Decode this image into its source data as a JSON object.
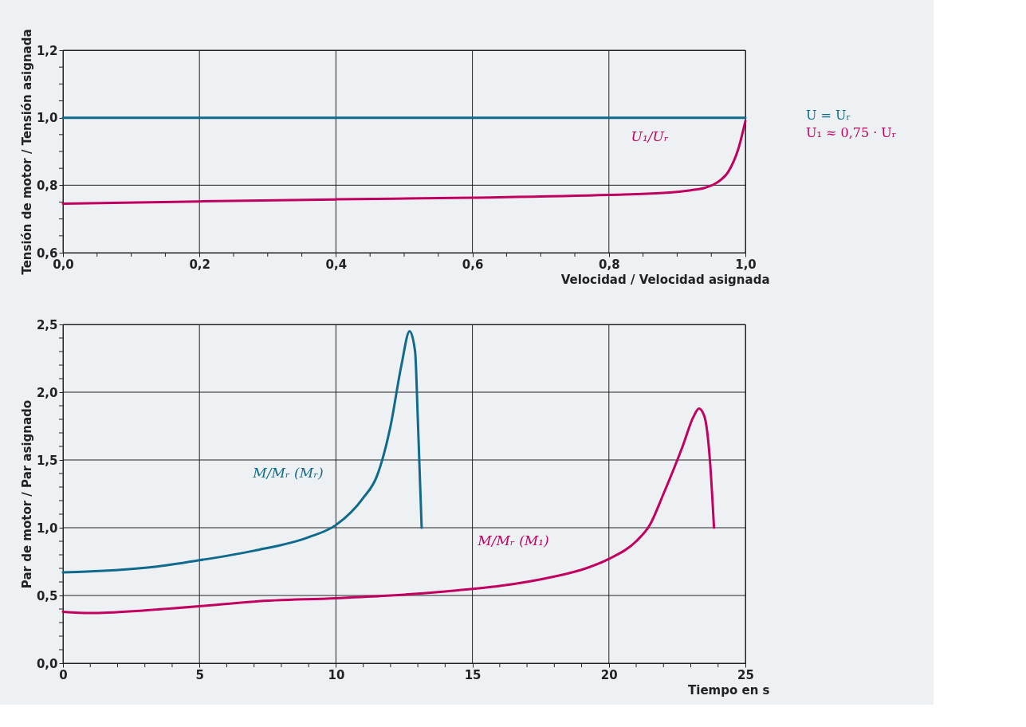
{
  "chart_data": [
    {
      "type": "line",
      "xlabel": "Velocidad / Velocidad asignada",
      "ylabel": "Tensión de motor / Tensión asignada",
      "grid": true,
      "marker": "none",
      "line_style": "solid",
      "legend": "right",
      "xlim": [
        0,
        1
      ],
      "ylim": [
        0.6,
        1.2
      ],
      "xticks": [
        {
          "value": 0,
          "label": "0,0"
        },
        {
          "value": 0.05,
          "label": null
        },
        {
          "value": 0.1,
          "label": null
        },
        {
          "value": 0.15,
          "label": null
        },
        {
          "value": 0.2,
          "label": "0,2"
        },
        {
          "value": 0.25,
          "label": null
        },
        {
          "value": 0.3,
          "label": null
        },
        {
          "value": 0.35,
          "label": null
        },
        {
          "value": 0.4,
          "label": "0,4"
        },
        {
          "value": 0.45,
          "label": null
        },
        {
          "value": 0.5,
          "label": null
        },
        {
          "value": 0.55,
          "label": null
        },
        {
          "value": 0.6,
          "label": "0,6"
        },
        {
          "value": 0.65,
          "label": null
        },
        {
          "value": 0.7,
          "label": null
        },
        {
          "value": 0.75,
          "label": null
        },
        {
          "value": 0.8,
          "label": "0,8"
        },
        {
          "value": 0.85,
          "label": null
        },
        {
          "value": 0.9,
          "label": null
        },
        {
          "value": 0.95,
          "label": null
        },
        {
          "value": 1.0,
          "label": "1,0"
        }
      ],
      "yticks": [
        {
          "value": 0.6,
          "label": "0,6"
        },
        {
          "value": 0.65,
          "label": null
        },
        {
          "value": 0.7,
          "label": null
        },
        {
          "value": 0.75,
          "label": null
        },
        {
          "value": 0.8,
          "label": "0,8"
        },
        {
          "value": 0.85,
          "label": null
        },
        {
          "value": 0.9,
          "label": null
        },
        {
          "value": 0.95,
          "label": null
        },
        {
          "value": 1.0,
          "label": "1,0"
        },
        {
          "value": 1.05,
          "label": null
        },
        {
          "value": 1.1,
          "label": null
        },
        {
          "value": 1.15,
          "label": null
        },
        {
          "value": 1.2,
          "label": "1,2"
        }
      ],
      "annotations": [
        "U₁/Uᵣ"
      ],
      "series": [
        {
          "name": "U = Uᵣ",
          "color": "#0f6a8c",
          "x": [
            0,
            1
          ],
          "values": [
            1.0,
            1.0
          ]
        },
        {
          "name": "U₁ ≈ 0,75 · Uᵣ",
          "color": "#c1005f",
          "x": [
            0,
            0.2,
            0.4,
            0.6,
            0.8,
            0.88,
            0.92,
            0.94,
            0.96,
            0.975,
            0.99,
            1.0
          ],
          "values": [
            0.745,
            0.752,
            0.758,
            0.763,
            0.771,
            0.777,
            0.785,
            0.792,
            0.81,
            0.84,
            0.91,
            0.99
          ]
        }
      ]
    },
    {
      "type": "line",
      "xlabel": "Tiempo en s",
      "ylabel": "Par de motor / Par asignado",
      "grid": true,
      "marker": "none",
      "line_style": "solid",
      "xlim": [
        0,
        25
      ],
      "ylim": [
        0,
        2.5
      ],
      "xticks": [
        {
          "value": 0,
          "label": "0"
        },
        {
          "value": 1,
          "label": null
        },
        {
          "value": 2,
          "label": null
        },
        {
          "value": 3,
          "label": null
        },
        {
          "value": 4,
          "label": null
        },
        {
          "value": 5,
          "label": "5"
        },
        {
          "value": 6,
          "label": null
        },
        {
          "value": 7,
          "label": null
        },
        {
          "value": 8,
          "label": null
        },
        {
          "value": 9,
          "label": null
        },
        {
          "value": 10,
          "label": "10"
        },
        {
          "value": 11,
          "label": null
        },
        {
          "value": 12,
          "label": null
        },
        {
          "value": 13,
          "label": null
        },
        {
          "value": 14,
          "label": null
        },
        {
          "value": 15,
          "label": "15"
        },
        {
          "value": 16,
          "label": null
        },
        {
          "value": 17,
          "label": null
        },
        {
          "value": 18,
          "label": null
        },
        {
          "value": 19,
          "label": null
        },
        {
          "value": 20,
          "label": "20"
        },
        {
          "value": 21,
          "label": null
        },
        {
          "value": 22,
          "label": null
        },
        {
          "value": 23,
          "label": null
        },
        {
          "value": 24,
          "label": null
        },
        {
          "value": 25,
          "label": "25"
        }
      ],
      "yticks": [
        {
          "value": 0,
          "label": "0,0"
        },
        {
          "value": 0.1,
          "label": null
        },
        {
          "value": 0.2,
          "label": null
        },
        {
          "value": 0.3,
          "label": null
        },
        {
          "value": 0.4,
          "label": null
        },
        {
          "value": 0.5,
          "label": "0,5"
        },
        {
          "value": 0.6,
          "label": null
        },
        {
          "value": 0.7,
          "label": null
        },
        {
          "value": 0.8,
          "label": null
        },
        {
          "value": 0.9,
          "label": null
        },
        {
          "value": 1.0,
          "label": "1,0"
        },
        {
          "value": 1.1,
          "label": null
        },
        {
          "value": 1.2,
          "label": null
        },
        {
          "value": 1.3,
          "label": null
        },
        {
          "value": 1.4,
          "label": null
        },
        {
          "value": 1.5,
          "label": "1,5"
        },
        {
          "value": 1.6,
          "label": null
        },
        {
          "value": 1.7,
          "label": null
        },
        {
          "value": 1.8,
          "label": null
        },
        {
          "value": 1.9,
          "label": null
        },
        {
          "value": 2.0,
          "label": "2,0"
        },
        {
          "value": 2.1,
          "label": null
        },
        {
          "value": 2.2,
          "label": null
        },
        {
          "value": 2.3,
          "label": null
        },
        {
          "value": 2.4,
          "label": null
        },
        {
          "value": 2.5,
          "label": "2,5"
        }
      ],
      "annotations": [
        "M/Mᵣ (Mᵣ)",
        "M/Mᵣ (M₁)"
      ],
      "series": [
        {
          "color": "#0f6a8c",
          "x": [
            0,
            3.3,
            5,
            7,
            9,
            10,
            11,
            11.5,
            12,
            12.4,
            12.7,
            12.9,
            13.0,
            13.14
          ],
          "values": [
            0.67,
            0.71,
            0.76,
            0.83,
            0.93,
            1.02,
            1.22,
            1.38,
            1.75,
            2.2,
            2.45,
            2.3,
            1.8,
            1.0
          ]
        },
        {
          "color": "#c1005f",
          "x": [
            0,
            1,
            3,
            5,
            7,
            10,
            12,
            14,
            16,
            18,
            19,
            20,
            21,
            21.5,
            22,
            22.7,
            23.1,
            23.3,
            23.5,
            23.7,
            23.85
          ],
          "values": [
            0.38,
            0.37,
            0.39,
            0.42,
            0.455,
            0.48,
            0.5,
            0.53,
            0.57,
            0.64,
            0.69,
            0.77,
            0.9,
            1.02,
            1.25,
            1.6,
            1.82,
            1.88,
            1.82,
            1.5,
            1.0
          ]
        }
      ]
    }
  ]
}
